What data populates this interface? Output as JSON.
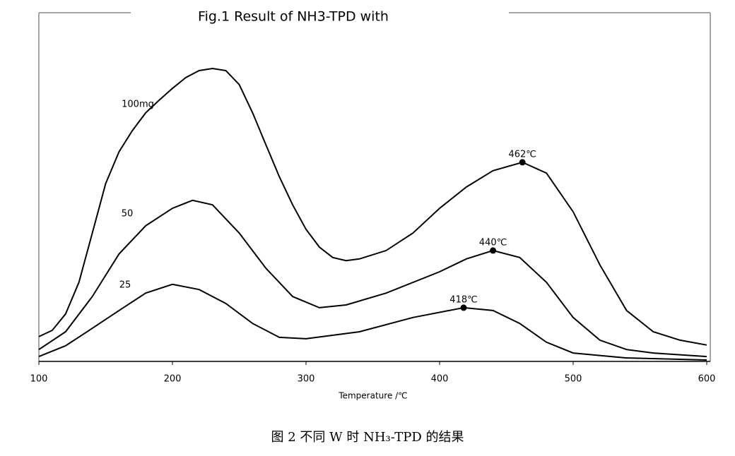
{
  "chart_data": {
    "type": "line",
    "title": "Fig.1 Result of NH3-TPD with",
    "x_label": "Temperature /℃",
    "caption": "图 2 不同 W 时 NH₃-TPD 的结果",
    "xlim": [
      100,
      600
    ],
    "xticks": [
      100,
      200,
      300,
      400,
      500,
      600
    ],
    "ylim": [
      0,
      100
    ],
    "series": [
      {
        "name": "100mg",
        "color": "#000000",
        "x": [
          100,
          110,
          120,
          130,
          140,
          150,
          160,
          170,
          180,
          190,
          200,
          210,
          220,
          230,
          240,
          250,
          260,
          270,
          280,
          290,
          300,
          310,
          320,
          330,
          340,
          360,
          380,
          400,
          420,
          440,
          462,
          480,
          500,
          520,
          540,
          560,
          580,
          600
        ],
        "values": [
          7.1,
          8.9,
          13.6,
          22.7,
          36.8,
          51.0,
          60.1,
          66.2,
          71.3,
          74.9,
          78.3,
          81.4,
          83.4,
          84.0,
          83.4,
          79.4,
          71.3,
          62.1,
          53.0,
          44.9,
          37.9,
          32.8,
          29.8,
          28.9,
          29.4,
          31.8,
          36.8,
          43.9,
          50.0,
          54.7,
          57.1,
          54.0,
          42.9,
          27.7,
          14.6,
          8.5,
          6.1,
          4.7
        ],
        "peak": {
          "x": 462,
          "y": 57.1,
          "label": "462℃"
        }
      },
      {
        "name": "50",
        "color": "#000000",
        "x": [
          100,
          120,
          140,
          160,
          180,
          200,
          215,
          230,
          250,
          270,
          290,
          310,
          330,
          360,
          400,
          420,
          440,
          460,
          480,
          500,
          520,
          540,
          560,
          600
        ],
        "values": [
          3.4,
          8.5,
          18.6,
          30.8,
          38.9,
          43.9,
          46.2,
          44.9,
          36.8,
          26.7,
          18.6,
          15.4,
          16.2,
          19.6,
          25.7,
          29.4,
          31.8,
          29.8,
          22.7,
          12.6,
          6.1,
          3.4,
          2.4,
          1.4
        ],
        "peak": {
          "x": 440,
          "y": 31.8,
          "label": "440℃"
        }
      },
      {
        "name": "25",
        "color": "#000000",
        "x": [
          100,
          120,
          140,
          160,
          180,
          200,
          220,
          240,
          260,
          280,
          300,
          340,
          380,
          418,
          440,
          460,
          480,
          500,
          540,
          600
        ],
        "values": [
          1.4,
          4.5,
          9.5,
          14.6,
          19.6,
          22.1,
          20.6,
          16.6,
          10.9,
          6.9,
          6.5,
          8.5,
          12.6,
          15.4,
          14.6,
          10.9,
          5.5,
          2.4,
          1.0,
          0.4
        ],
        "peak": {
          "x": 418,
          "y": 15.4,
          "label": "418℃"
        }
      }
    ]
  }
}
